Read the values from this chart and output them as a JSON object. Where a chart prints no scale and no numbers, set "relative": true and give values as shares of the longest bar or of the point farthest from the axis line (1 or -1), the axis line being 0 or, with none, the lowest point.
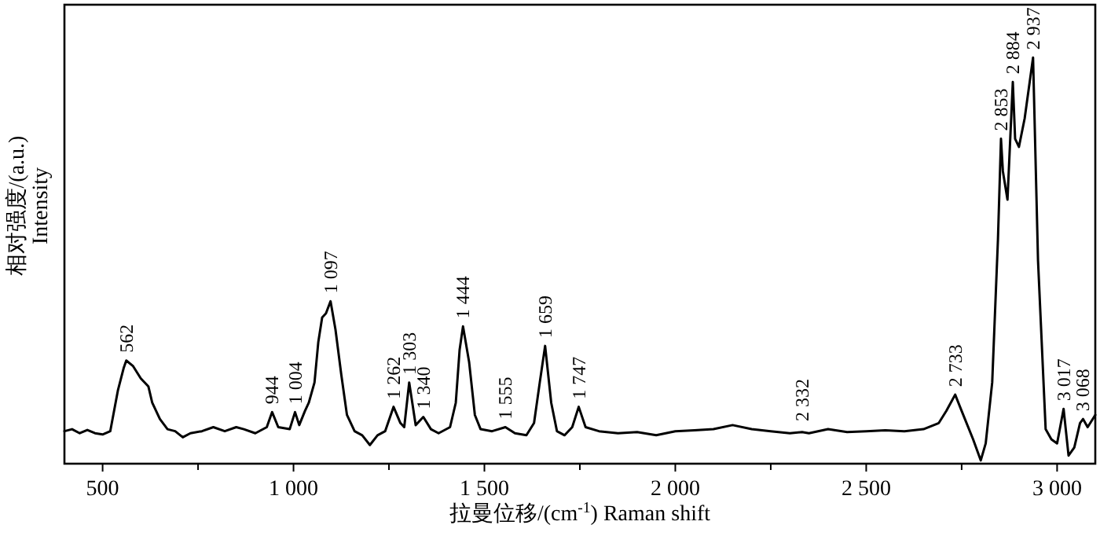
{
  "chart_data": {
    "type": "line",
    "relative": true,
    "xlabel": "拉曼位移/(cm$^{-1}$) Raman shift",
    "ylabel": "相对强度/(a.u.) Intensity",
    "color": "#000000",
    "line_style": "solid",
    "xlim": [
      400,
      3100
    ],
    "xticks": [
      500,
      {
        "value": 750,
        "label": null
      },
      {
        "value": 1000,
        "label": "1 000"
      },
      {
        "value": 1250,
        "label": null
      },
      {
        "value": 1500,
        "label": "1 500"
      },
      {
        "value": 1750,
        "label": null
      },
      {
        "value": 2000,
        "label": "2 000"
      },
      {
        "value": 2250,
        "label": null
      },
      {
        "value": 2500,
        "label": "2 500"
      },
      {
        "value": 2750,
        "label": null
      },
      {
        "value": 3000,
        "label": "3 000"
      }
    ],
    "x": [
      400,
      420,
      440,
      460,
      480,
      500,
      520,
      540,
      555,
      562,
      580,
      600,
      620,
      630,
      650,
      670,
      690,
      710,
      730,
      760,
      790,
      820,
      850,
      870,
      900,
      930,
      944,
      960,
      990,
      1004,
      1015,
      1030,
      1040,
      1055,
      1065,
      1075,
      1085,
      1097,
      1110,
      1125,
      1140,
      1160,
      1180,
      1200,
      1220,
      1240,
      1262,
      1280,
      1290,
      1303,
      1320,
      1340,
      1360,
      1380,
      1410,
      1425,
      1435,
      1444,
      1460,
      1475,
      1490,
      1520,
      1555,
      1580,
      1610,
      1630,
      1645,
      1659,
      1675,
      1690,
      1710,
      1730,
      1747,
      1765,
      1800,
      1850,
      1900,
      1950,
      2000,
      2050,
      2100,
      2150,
      2200,
      2250,
      2300,
      2332,
      2350,
      2400,
      2450,
      2500,
      2550,
      2600,
      2650,
      2690,
      2710,
      2733,
      2750,
      2780,
      2800,
      2813,
      2830,
      2845,
      2853,
      2858,
      2870,
      2884,
      2890,
      2900,
      2915,
      2937,
      2950,
      2970,
      2985,
      3000,
      3017,
      3030,
      3045,
      3060,
      3068,
      3080,
      3100
    ],
    "values": [
      0.08,
      0.085,
      0.075,
      0.083,
      0.075,
      0.072,
      0.08,
      0.18,
      0.235,
      0.254,
      0.24,
      0.21,
      0.19,
      0.15,
      0.11,
      0.085,
      0.08,
      0.065,
      0.075,
      0.08,
      0.09,
      0.08,
      0.09,
      0.085,
      0.075,
      0.09,
      0.127,
      0.09,
      0.085,
      0.127,
      0.095,
      0.13,
      0.15,
      0.2,
      0.3,
      0.36,
      0.37,
      0.4,
      0.33,
      0.22,
      0.12,
      0.08,
      0.07,
      0.046,
      0.07,
      0.08,
      0.14,
      0.1,
      0.09,
      0.2,
      0.095,
      0.115,
      0.085,
      0.075,
      0.09,
      0.15,
      0.28,
      0.338,
      0.25,
      0.12,
      0.085,
      0.08,
      0.09,
      0.075,
      0.07,
      0.1,
      0.2,
      0.29,
      0.15,
      0.08,
      0.07,
      0.09,
      0.14,
      0.09,
      0.08,
      0.075,
      0.078,
      0.07,
      0.08,
      0.082,
      0.085,
      0.095,
      0.085,
      0.08,
      0.075,
      0.078,
      0.075,
      0.085,
      0.078,
      0.08,
      0.082,
      0.08,
      0.085,
      0.1,
      0.13,
      0.17,
      0.13,
      0.06,
      0.008,
      0.05,
      0.2,
      0.55,
      0.8,
      0.72,
      0.65,
      0.94,
      0.8,
      0.78,
      0.85,
      1.0,
      0.5,
      0.085,
      0.06,
      0.05,
      0.135,
      0.02,
      0.04,
      0.1,
      0.11,
      0.09,
      0.12
    ],
    "annotations": [
      {
        "text": "562",
        "x": 562,
        "y": 0.254
      },
      {
        "text": "944",
        "x": 944,
        "y": 0.127
      },
      {
        "text": "1 004",
        "x": 1004,
        "y": 0.127
      },
      {
        "text": "1 097",
        "x": 1097,
        "y": 0.4
      },
      {
        "text": "1 262",
        "x": 1262,
        "y": 0.14
      },
      {
        "text": "1 303",
        "x": 1303,
        "y": 0.2
      },
      {
        "text": "1 340",
        "x": 1340,
        "y": 0.115
      },
      {
        "text": "1 444",
        "x": 1444,
        "y": 0.338
      },
      {
        "text": "1 555",
        "x": 1555,
        "y": 0.09
      },
      {
        "text": "1 659",
        "x": 1659,
        "y": 0.29
      },
      {
        "text": "1 747",
        "x": 1747,
        "y": 0.14
      },
      {
        "text": "2 332",
        "x": 2332,
        "y": 0.085
      },
      {
        "text": "2 733",
        "x": 2733,
        "y": 0.17
      },
      {
        "text": "2 853",
        "x": 2853,
        "y": 0.8
      },
      {
        "text": "2 884",
        "x": 2884,
        "y": 0.94
      },
      {
        "text": "2 937",
        "x": 2937,
        "y": 1.0
      },
      {
        "text": "3 017",
        "x": 3017,
        "y": 0.135
      },
      {
        "text": "3 068",
        "x": 3068,
        "y": 0.11
      }
    ]
  }
}
